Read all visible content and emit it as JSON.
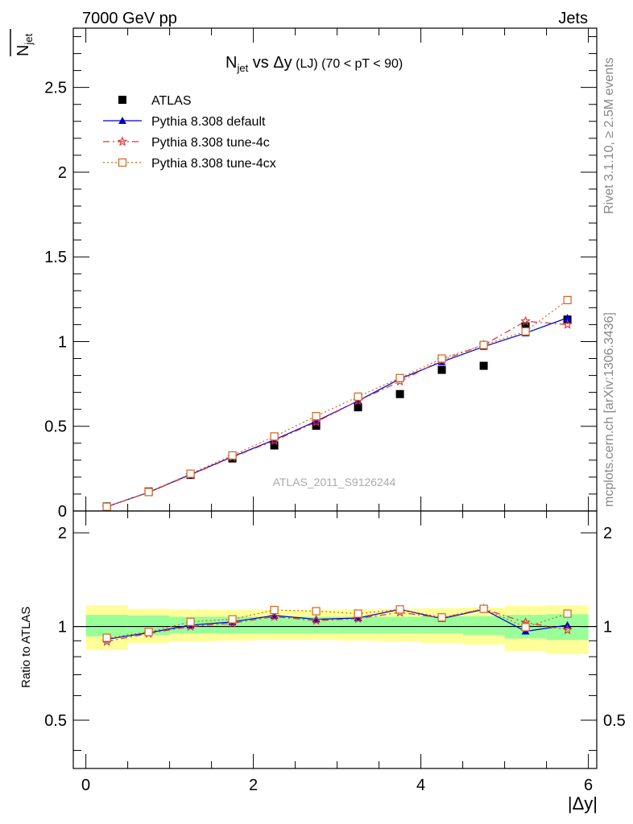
{
  "header": {
    "left": "7000 GeV pp",
    "right": "Jets"
  },
  "side_labels": {
    "rivet": "Rivet 3.1.10, ≥ 2.5M events",
    "mcplots": "mcplots.cern.ch [arXiv:1306.3436]"
  },
  "watermark": "ATLAS_2011_S9126244",
  "chart_data": {
    "type": "scatter",
    "title": {
      "main": "N",
      "main_sub": "jet",
      "mid": " vs Δy",
      "small": " (LJ) (70 < pT <  90)"
    },
    "ylabel": {
      "main": "N",
      "sub": "jet"
    },
    "ratio_ylabel": "Ratio to ATLAS",
    "xlabel": "|Δy|",
    "xlim": [
      -0.15,
      6.1
    ],
    "ylim": [
      0,
      2.85
    ],
    "ratio_ylim": [
      0.35,
      2.35
    ],
    "x_ticks": [
      0,
      2,
      4,
      6
    ],
    "x_tick_labels": [
      "0",
      "2",
      "4",
      "6"
    ],
    "y_ticks": [
      0,
      0.5,
      1,
      1.5,
      2,
      2.5
    ],
    "y_tick_labels": [
      "0",
      "0.5",
      "1",
      "1.5",
      "2",
      "2.5"
    ],
    "ratio_ticks": [
      0.5,
      1,
      2
    ],
    "ratio_tick_labels": [
      "0.5",
      "1",
      "2"
    ],
    "legend_position": "top-left",
    "x": [
      0.25,
      0.75,
      1.25,
      1.75,
      2.25,
      2.75,
      3.25,
      3.75,
      4.25,
      4.75,
      5.25,
      5.75
    ],
    "x_edges": [
      0,
      0.5,
      1,
      1.5,
      2,
      2.5,
      3,
      3.5,
      4,
      4.5,
      5,
      5.5,
      6
    ],
    "series": [
      {
        "name": "ATLAS",
        "color": "#000000",
        "marker": "square",
        "values": [
          0.027,
          0.115,
          0.213,
          0.31,
          0.387,
          0.503,
          0.612,
          0.69,
          0.833,
          0.857,
          1.09,
          1.13
        ]
      },
      {
        "name": "Pythia 8.308 default",
        "color": "#0000cc",
        "marker": "triangle",
        "line": "solid",
        "values": [
          0.025,
          0.11,
          0.215,
          0.32,
          0.42,
          0.53,
          0.65,
          0.78,
          0.88,
          0.97,
          1.05,
          1.14
        ],
        "ratio": [
          0.91,
          0.955,
          1.01,
          1.035,
          1.085,
          1.055,
          1.065,
          1.135,
          1.06,
          1.135,
          0.965,
          1.01
        ]
      },
      {
        "name": "Pythia 8.308 tune-4c",
        "color": "#dd3333",
        "marker": "star",
        "line": "dashdot",
        "values": [
          0.024,
          0.11,
          0.213,
          0.318,
          0.415,
          0.525,
          0.65,
          0.765,
          0.89,
          0.98,
          1.12,
          1.1
        ],
        "ratio": [
          0.895,
          0.95,
          1.0,
          1.025,
          1.075,
          1.045,
          1.06,
          1.11,
          1.065,
          1.14,
          1.03,
          0.975
        ]
      },
      {
        "name": "Pythia 8.308 tune-4cx",
        "color": "#cc6622",
        "marker": "open-square",
        "line": "dotted",
        "values": [
          0.025,
          0.112,
          0.22,
          0.328,
          0.44,
          0.56,
          0.675,
          0.785,
          0.9,
          0.98,
          1.06,
          1.245
        ],
        "ratio": [
          0.92,
          0.96,
          1.035,
          1.055,
          1.13,
          1.12,
          1.1,
          1.135,
          1.07,
          1.14,
          0.995,
          1.1
        ]
      }
    ],
    "ratio_band_green": [
      [
        0.93,
        1.09
      ],
      [
        0.94,
        1.085
      ],
      [
        0.95,
        1.075
      ],
      [
        0.95,
        1.075
      ],
      [
        0.95,
        1.075
      ],
      [
        0.95,
        1.075
      ],
      [
        0.95,
        1.075
      ],
      [
        0.95,
        1.075
      ],
      [
        0.95,
        1.08
      ],
      [
        0.94,
        1.08
      ],
      [
        0.915,
        1.09
      ],
      [
        0.905,
        1.095
      ]
    ],
    "ratio_band_yellow": [
      [
        0.84,
        1.17
      ],
      [
        0.885,
        1.14
      ],
      [
        0.895,
        1.135
      ],
      [
        0.9,
        1.13
      ],
      [
        0.905,
        1.13
      ],
      [
        0.905,
        1.13
      ],
      [
        0.9,
        1.135
      ],
      [
        0.895,
        1.14
      ],
      [
        0.885,
        1.145
      ],
      [
        0.875,
        1.15
      ],
      [
        0.835,
        1.165
      ],
      [
        0.815,
        1.17
      ]
    ]
  }
}
